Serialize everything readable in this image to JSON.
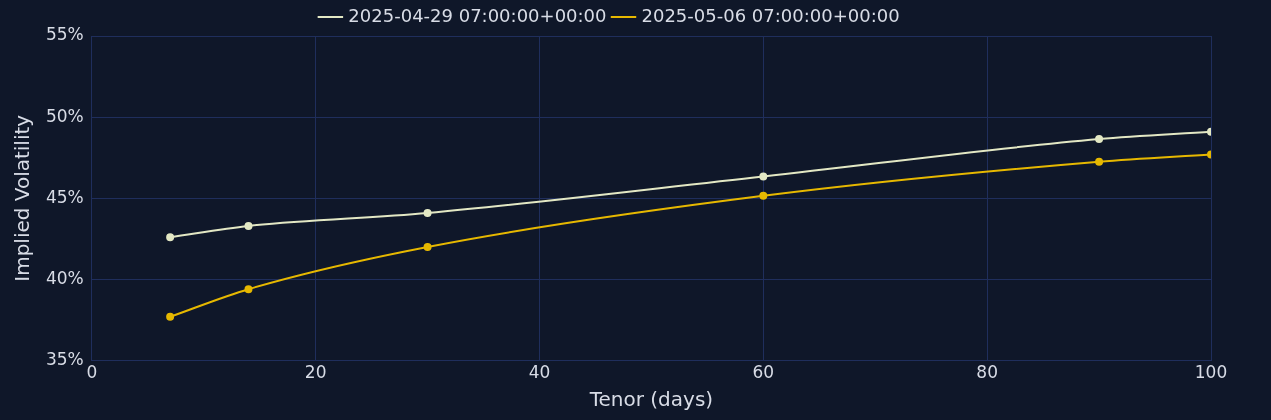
{
  "chart_data": {
    "type": "line",
    "xlabel": "Tenor (days)",
    "ylabel": "Implied Volatility",
    "xlim": [
      0,
      100
    ],
    "xticks": [
      0,
      20,
      40,
      60,
      80,
      100
    ],
    "ylim": [
      35,
      55
    ],
    "yticks": [
      {
        "value": 35,
        "label": "35%"
      },
      {
        "value": 40,
        "label": "40%"
      },
      {
        "value": 45,
        "label": "45%"
      },
      {
        "value": 50,
        "label": "50%"
      },
      {
        "value": 55,
        "label": "55%"
      }
    ],
    "grid": true,
    "legend": "top",
    "marker": "circle",
    "line_style": "solid",
    "series": [
      {
        "name": "2025-04-29 07:00:00+00:00",
        "color": "#e3e8c4",
        "x": [
          7,
          14,
          30,
          60,
          90,
          100
        ],
        "values": [
          42.6,
          43.3,
          44.1,
          46.35,
          48.65,
          49.1
        ]
      },
      {
        "name": "2025-05-06 07:00:00+00:00",
        "color": "#e6b800",
        "x": [
          7,
          14,
          30,
          60,
          90,
          100
        ],
        "values": [
          37.7,
          39.4,
          42.0,
          45.15,
          47.25,
          47.7
        ]
      }
    ]
  }
}
